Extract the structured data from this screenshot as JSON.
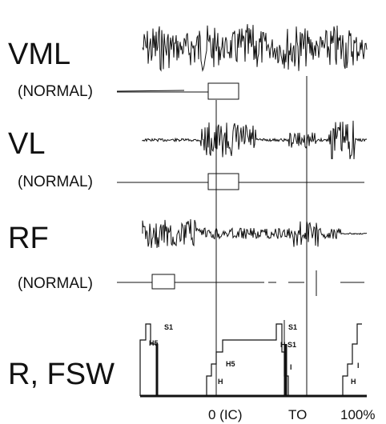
{
  "muscles": [
    {
      "label": "VML",
      "normal_label": "(NORMAL)"
    },
    {
      "label": "VL",
      "normal_label": "(NORMAL)"
    },
    {
      "label": "RF",
      "normal_label": "(NORMAL)"
    }
  ],
  "footswitch": {
    "label": "R, FSW",
    "step_labels": [
      "S1",
      "H5",
      "H",
      "S1",
      "H S1",
      "I"
    ]
  },
  "x_axis": {
    "ticks": [
      "0 (IC)",
      "TO",
      "100%"
    ]
  }
}
